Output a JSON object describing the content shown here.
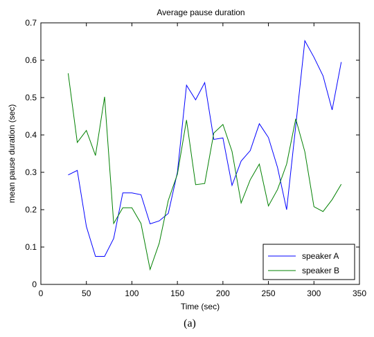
{
  "chart_data": {
    "type": "line",
    "title": "Average pause duration",
    "xlabel": "Time (sec)",
    "ylabel": "mean pause duration (sec)",
    "xlim": [
      0,
      350
    ],
    "ylim": [
      0,
      0.7
    ],
    "xticks": [
      0,
      50,
      100,
      150,
      200,
      250,
      300,
      350
    ],
    "yticks": [
      0,
      0.1,
      0.2,
      0.3,
      0.4,
      0.5,
      0.6,
      0.7
    ],
    "x": [
      30,
      40,
      50,
      60,
      70,
      80,
      90,
      100,
      110,
      120,
      130,
      140,
      150,
      160,
      170,
      180,
      190,
      200,
      210,
      220,
      230,
      240,
      250,
      260,
      270,
      280,
      290,
      300,
      310,
      320,
      330
    ],
    "series": [
      {
        "name": "speaker A",
        "color": "#0000ff",
        "values": [
          0.293,
          0.305,
          0.155,
          0.075,
          0.075,
          0.123,
          0.245,
          0.245,
          0.24,
          0.162,
          0.17,
          0.19,
          0.3,
          0.533,
          0.494,
          0.54,
          0.388,
          0.392,
          0.265,
          0.33,
          0.358,
          0.43,
          0.393,
          0.313,
          0.2,
          0.424,
          0.652,
          0.608,
          0.558,
          0.467,
          0.595
        ]
      },
      {
        "name": "speaker B",
        "color": "#008000",
        "values": [
          0.565,
          0.38,
          0.412,
          0.345,
          0.502,
          0.163,
          0.205,
          0.205,
          0.163,
          0.04,
          0.11,
          0.225,
          0.295,
          0.44,
          0.267,
          0.27,
          0.405,
          0.428,
          0.356,
          0.218,
          0.28,
          0.322,
          0.21,
          0.254,
          0.322,
          0.443,
          0.355,
          0.208,
          0.195,
          0.227,
          0.268
        ]
      }
    ],
    "legend_position": "bottom-right",
    "grid": false
  },
  "caption": "(a)"
}
